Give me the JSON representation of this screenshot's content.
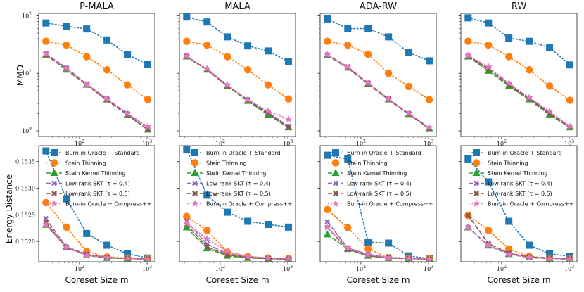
{
  "figure": {
    "ylabel_top": "MMD",
    "ylabel_bottom": "Energy Distance",
    "xlabel": "Coreset Size m",
    "titles": [
      "P-MALA",
      "MALA",
      "ADA-RW",
      "RW"
    ]
  },
  "legend": {
    "entries": [
      "Burn-in Oracle + Standard",
      "Stein Thinning",
      "Stein Kernel Thinning",
      "Low-rank SKT (τ = 0.4)",
      "Low-rank SKT (τ = 0.5)",
      "Burn-in Oracle + Compress++"
    ]
  },
  "colors": {
    "standard": "#1f77b4",
    "stein_thinning": "#ff7f0e",
    "skt": "#2ca02c",
    "lr04": "#9467bd",
    "lr05": "#8c564b",
    "compress": "#e377c2"
  },
  "chart_data": [
    {
      "type": "line",
      "title": "P-MALA",
      "xlabel": "",
      "ylabel": "MMD",
      "x": [
        32,
        64,
        128,
        256,
        512,
        1024
      ],
      "xscale": "log",
      "yscale": "log",
      "ylim": [
        0.8,
        110
      ],
      "xticks": [
        "10^2",
        "10^3"
      ],
      "yticks": [
        "10^0",
        "10^1",
        "10^2"
      ],
      "series": [
        {
          "name": "Burn-in Oracle + Standard",
          "values": [
            75,
            66,
            59,
            38,
            21,
            14.5
          ]
        },
        {
          "name": "Stein Thinning",
          "values": [
            36,
            31,
            19.5,
            11.5,
            6.3,
            3.5
          ]
        },
        {
          "name": "Stein Kernel Thinning",
          "values": [
            21,
            11.5,
            6.3,
            3.5,
            1.9,
            1.05
          ]
        },
        {
          "name": "Low-rank SKT (τ = 0.4)",
          "values": [
            22,
            12.5,
            6.5,
            3.6,
            2.0,
            1.15
          ]
        },
        {
          "name": "Low-rank SKT (τ = 0.5)",
          "values": [
            21,
            12,
            6.3,
            3.4,
            1.9,
            1.05
          ]
        },
        {
          "name": "Burn-in Oracle + Compress++",
          "values": [
            22,
            12,
            6.5,
            3.6,
            2.0,
            1.2
          ]
        }
      ]
    },
    {
      "type": "line",
      "title": "MALA",
      "xlabel": "",
      "ylabel": "",
      "x": [
        32,
        64,
        128,
        256,
        512,
        1024
      ],
      "xscale": "log",
      "yscale": "log",
      "ylim": [
        0.8,
        110
      ],
      "xticks": [
        "10^2",
        "10^3"
      ],
      "yticks": [],
      "series": [
        {
          "name": "Burn-in Oracle + Standard",
          "values": [
            95,
            78,
            43,
            30,
            24.5,
            16
          ]
        },
        {
          "name": "Stein Thinning",
          "values": [
            36,
            31,
            19.5,
            11.5,
            6.3,
            3.6
          ]
        },
        {
          "name": "Stein Kernel Thinning",
          "values": [
            19.5,
            11.5,
            6.0,
            3.3,
            1.9,
            1.15
          ]
        },
        {
          "name": "Low-rank SKT (τ = 0.4)",
          "values": [
            20,
            11.5,
            6.0,
            3.5,
            2.1,
            1.2
          ]
        },
        {
          "name": "Low-rank SKT (τ = 0.5)",
          "values": [
            19.5,
            11.5,
            6.0,
            3.4,
            2.0,
            1.15
          ]
        },
        {
          "name": "Burn-in Oracle + Compress++",
          "values": [
            20,
            12,
            6.3,
            3.5,
            2.2,
            1.6
          ]
        }
      ]
    },
    {
      "type": "line",
      "title": "ADA-RW",
      "xlabel": "",
      "ylabel": "",
      "x": [
        32,
        64,
        128,
        256,
        512,
        1024
      ],
      "xscale": "log",
      "yscale": "log",
      "ylim": [
        0.8,
        110
      ],
      "xticks": [
        "10^2",
        "10^3"
      ],
      "yticks": [],
      "series": [
        {
          "name": "Burn-in Oracle + Standard",
          "values": [
            88,
            60,
            60,
            43,
            23,
            16.5
          ]
        },
        {
          "name": "Stein Thinning",
          "values": [
            36,
            31,
            21.5,
            10,
            5.9,
            3.5
          ]
        },
        {
          "name": "Stein Kernel Thinning",
          "values": [
            20.5,
            12.5,
            6.5,
            3.5,
            1.95,
            1.1
          ]
        },
        {
          "name": "Low-rank SKT (τ = 0.4)",
          "values": [
            21,
            13,
            6.8,
            3.6,
            2.0,
            1.1
          ]
        },
        {
          "name": "Low-rank SKT (τ = 0.5)",
          "values": [
            20.5,
            12.5,
            6.5,
            3.5,
            1.95,
            1.1
          ]
        },
        {
          "name": "Burn-in Oracle + Compress++",
          "values": [
            21,
            13,
            6.8,
            3.6,
            2.0,
            1.15
          ]
        }
      ]
    },
    {
      "type": "line",
      "title": "RW",
      "xlabel": "",
      "ylabel": "",
      "x": [
        32,
        64,
        128,
        256,
        512,
        1024
      ],
      "xscale": "log",
      "yscale": "log",
      "ylim": [
        0.8,
        110
      ],
      "xticks": [
        "10^2",
        "10^3"
      ],
      "yticks": [],
      "series": [
        {
          "name": "Burn-in Oracle + Standard",
          "values": [
            92,
            75,
            41,
            36,
            28,
            14
          ]
        },
        {
          "name": "Stein Thinning",
          "values": [
            36,
            31,
            19.5,
            11.5,
            6.0,
            3.4
          ]
        },
        {
          "name": "Stein Kernel Thinning",
          "values": [
            19.5,
            11,
            6.0,
            3.5,
            1.9,
            1.15
          ]
        },
        {
          "name": "Low-rank SKT (τ = 0.4)",
          "values": [
            20,
            12,
            6.5,
            3.7,
            2.1,
            1.15
          ]
        },
        {
          "name": "Low-rank SKT (τ = 0.5)",
          "values": [
            19.5,
            12,
            6.3,
            3.6,
            2.0,
            1.15
          ]
        },
        {
          "name": "Burn-in Oracle + Compress++",
          "values": [
            20.5,
            13,
            6.8,
            3.8,
            2.2,
            1.2
          ]
        }
      ]
    },
    {
      "type": "line",
      "title": "",
      "xlabel": "Coreset Size m",
      "ylabel": "Energy Distance",
      "x": [
        32,
        64,
        128,
        256,
        512,
        1024
      ],
      "xscale": "log",
      "yscale": "linear",
      "ylim": [
        0.15162,
        0.1538
      ],
      "xticks": [
        "10^2",
        "10^3"
      ],
      "yticks": [
        "0.1520",
        "0.1525",
        "0.1530",
        "0.1535"
      ],
      "series": [
        {
          "name": "Burn-in Oracle + Standard",
          "values": [
            0.1537,
            0.1528,
            0.15215,
            0.15193,
            0.15177,
            0.15169
          ]
        },
        {
          "name": "Stein Thinning",
          "values": [
            0.15273,
            0.15227,
            0.15181,
            0.15171,
            0.15169,
            0.15168
          ]
        },
        {
          "name": "Stein Kernel Thinning",
          "values": [
            0.15231,
            0.15189,
            0.15174,
            0.15169,
            0.15168,
            0.15167
          ]
        },
        {
          "name": "Low-rank SKT (τ = 0.4)",
          "values": [
            0.15243,
            0.1519,
            0.15176,
            0.1517,
            0.15168,
            0.15167
          ]
        },
        {
          "name": "Low-rank SKT (τ = 0.5)",
          "values": [
            0.15236,
            0.15188,
            0.15175,
            0.1517,
            0.15168,
            0.15167
          ]
        },
        {
          "name": "Burn-in Oracle + Compress++",
          "values": [
            0.15232,
            0.15189,
            0.15174,
            0.1517,
            0.15168,
            0.15167
          ]
        }
      ]
    },
    {
      "type": "line",
      "title": "",
      "xlabel": "Coreset Size m",
      "ylabel": "",
      "x": [
        32,
        64,
        128,
        256,
        512,
        1024
      ],
      "xscale": "log",
      "yscale": "linear",
      "ylim": [
        0.15162,
        0.1538
      ],
      "xticks": [
        "10^2",
        "10^3"
      ],
      "yticks": [],
      "series": [
        {
          "name": "Burn-in Oracle + Standard",
          "values": [
            0.15373,
            0.15287,
            0.15255,
            0.15238,
            0.15232,
            0.15227
          ]
        },
        {
          "name": "Stein Thinning",
          "values": [
            0.15247,
            0.15221,
            0.1518,
            0.15172,
            0.15169,
            0.15168
          ]
        },
        {
          "name": "Stein Kernel Thinning",
          "values": [
            0.15226,
            0.15187,
            0.15173,
            0.15169,
            0.15168,
            0.15167
          ]
        },
        {
          "name": "Low-rank SKT (τ = 0.4)",
          "values": [
            0.15238,
            0.15195,
            0.15177,
            0.15171,
            0.15168,
            0.15167
          ]
        },
        {
          "name": "Low-rank SKT (τ = 0.5)",
          "values": [
            0.15232,
            0.1519,
            0.15175,
            0.1517,
            0.15168,
            0.15167
          ]
        },
        {
          "name": "Burn-in Oracle + Compress++",
          "values": [
            0.15234,
            0.15205,
            0.15181,
            0.15172,
            0.15169,
            0.15168
          ]
        }
      ]
    },
    {
      "type": "line",
      "title": "",
      "xlabel": "Coreset Size m",
      "ylabel": "",
      "x": [
        32,
        64,
        128,
        256,
        512,
        1024
      ],
      "xscale": "log",
      "yscale": "linear",
      "ylim": [
        0.15162,
        0.1538
      ],
      "xticks": [
        "10^2",
        "10^3"
      ],
      "yticks": [],
      "series": [
        {
          "name": "Burn-in Oracle + Standard",
          "values": [
            0.15362,
            0.15355,
            0.15199,
            0.15197,
            0.15173,
            0.15168
          ]
        },
        {
          "name": "Stein Thinning",
          "values": [
            0.1526,
            0.15226,
            0.15186,
            0.1517,
            0.15169,
            0.15168
          ]
        },
        {
          "name": "Stein Kernel Thinning",
          "values": [
            0.15213,
            0.15186,
            0.15173,
            0.15169,
            0.15168,
            0.15167
          ]
        },
        {
          "name": "Low-rank SKT (τ = 0.4)",
          "values": [
            0.15237,
            0.15188,
            0.15176,
            0.1517,
            0.15168,
            0.15167
          ]
        },
        {
          "name": "Low-rank SKT (τ = 0.5)",
          "values": [
            0.15226,
            0.15185,
            0.15173,
            0.15169,
            0.15168,
            0.15167
          ]
        },
        {
          "name": "Burn-in Oracle + Compress++",
          "values": [
            0.15226,
            0.15188,
            0.15175,
            0.1517,
            0.15168,
            0.15167
          ]
        }
      ]
    },
    {
      "type": "line",
      "title": "",
      "xlabel": "Coreset Size m",
      "ylabel": "",
      "x": [
        32,
        64,
        128,
        256,
        512,
        1024
      ],
      "xscale": "log",
      "yscale": "linear",
      "ylim": [
        0.15162,
        0.1538
      ],
      "xticks": [
        "10^2",
        "10^3"
      ],
      "yticks": [],
      "series": [
        {
          "name": "Burn-in Oracle + Standard",
          "values": [
            0.15355,
            0.15312,
            0.15238,
            0.15193,
            0.15177,
            0.15172
          ]
        },
        {
          "name": "Stein Thinning",
          "values": [
            0.15249,
            0.15221,
            0.15186,
            0.15172,
            0.15169,
            0.15168
          ]
        },
        {
          "name": "Stein Kernel Thinning",
          "values": [
            0.15226,
            0.15192,
            0.15176,
            0.1517,
            0.15168,
            0.15167
          ]
        },
        {
          "name": "Low-rank SKT (τ = 0.4)",
          "values": [
            0.15226,
            0.15193,
            0.15176,
            0.1517,
            0.15168,
            0.15167
          ]
        },
        {
          "name": "Low-rank SKT (τ = 0.5)",
          "values": [
            0.15249,
            0.15196,
            0.15178,
            0.15171,
            0.15169,
            0.15168
          ]
        },
        {
          "name": "Burn-in Oracle + Compress++",
          "values": [
            0.15226,
            0.15193,
            0.15176,
            0.1517,
            0.15168,
            0.15167
          ]
        }
      ]
    }
  ]
}
